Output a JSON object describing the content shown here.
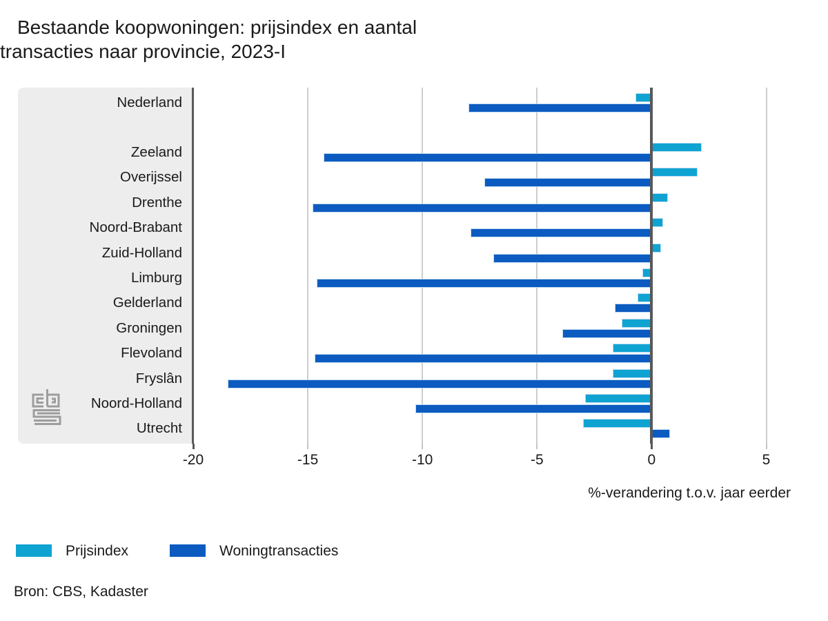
{
  "page": {
    "title_lines": [
      "Bestaande koopwoningen: prijsindex en aantal",
      "transacties naar provincie, 2023-I"
    ]
  },
  "chart_data": {
    "type": "bar",
    "orientation": "horizontal",
    "title": "Bestaande koopwoningen: prijsindex en aantal transacties naar provincie, 2023-I",
    "categories": [
      "Nederland",
      "Zeeland",
      "Overijssel",
      "Drenthe",
      "Noord-Brabant",
      "Zuid-Holland",
      "Limburg",
      "Gelderland",
      "Groningen",
      "Flevoland",
      "Fryslân",
      "Noord-Holland",
      "Utrecht"
    ],
    "series": [
      {
        "name": "Prijsindex",
        "color": "#0FA3D2",
        "values": [
          -0.7,
          2.2,
          2.0,
          0.7,
          0.5,
          0.4,
          -0.4,
          -0.6,
          -1.3,
          -1.7,
          -1.7,
          -2.9,
          -3.0
        ]
      },
      {
        "name": "Woningtransacties",
        "color": "#0C5BC0",
        "values": [
          -8.0,
          -14.3,
          -7.3,
          -14.8,
          -7.9,
          -6.9,
          -14.6,
          -1.6,
          -3.9,
          -14.7,
          -18.5,
          -10.3,
          0.8
        ]
      }
    ],
    "xlabel": "%-verandering t.o.v. jaar eerder",
    "xticks": [
      -20,
      -15,
      -10,
      -5,
      0,
      5
    ],
    "xlim": [
      -20,
      7.1
    ],
    "grid": "vertical",
    "legend_position": "bottom-left",
    "source": "Bron: CBS, Kadaster"
  },
  "colors": {
    "prijsindex": "#0FA3D2",
    "woningtransacties": "#0C5BC0",
    "panel_background": "#ededed",
    "gridline": "#cccccc",
    "axis": "#58595b"
  },
  "logo": {
    "name": "cbs-logo"
  }
}
